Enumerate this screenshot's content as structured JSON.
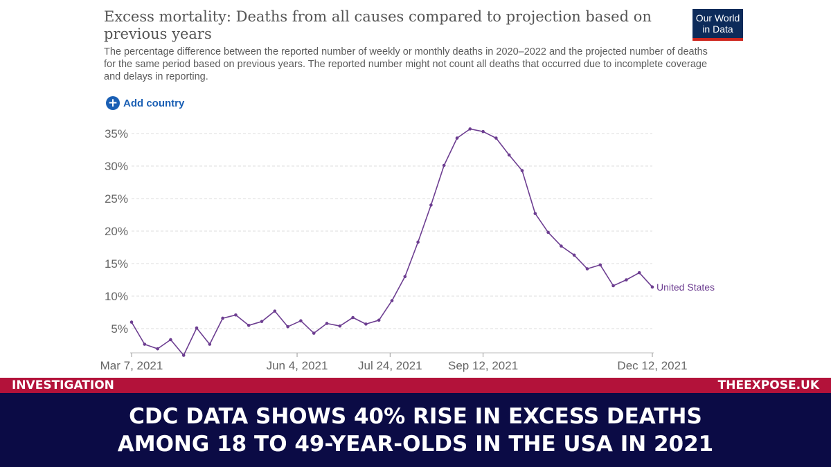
{
  "header": {
    "title": "Excess mortality: Deaths from all causes compared to projection based on previous years",
    "subtitle": "The percentage difference between the reported number of weekly or monthly deaths in 2020–2022 and the projected number of deaths for the same period based on previous years. The reported number might not count all deaths that occurred due to incomplete coverage and delays in reporting."
  },
  "logo": {
    "line1": "Our World",
    "line2": "in Data"
  },
  "controls": {
    "add_country_icon": "plus-circle-icon",
    "add_country_label": "Add country"
  },
  "chart_data": {
    "type": "line",
    "title": "Excess mortality: Deaths from all causes compared to projection based on previous years",
    "xlabel": "",
    "ylabel": "",
    "ylim": [
      0,
      37
    ],
    "yticks": [
      5,
      10,
      15,
      20,
      25,
      30,
      35
    ],
    "ytick_labels": [
      "5%",
      "10%",
      "15%",
      "20%",
      "25%",
      "30%",
      "35%"
    ],
    "xtick_labels": [
      {
        "label": "Mar 7, 2021",
        "date": "2021-03-07"
      },
      {
        "label": "Jun 4, 2021",
        "date": "2021-06-04"
      },
      {
        "label": "Jul 24, 2021",
        "date": "2021-07-24"
      },
      {
        "label": "Sep 12, 2021",
        "date": "2021-09-12"
      },
      {
        "label": "Dec 12, 2021",
        "date": "2021-12-12"
      }
    ],
    "grid": "horizontal dashed",
    "series": [
      {
        "name": "United States",
        "color": "#6d3e91",
        "x": [
          "2021-03-07",
          "2021-03-14",
          "2021-03-21",
          "2021-03-28",
          "2021-04-04",
          "2021-04-11",
          "2021-04-18",
          "2021-04-25",
          "2021-05-02",
          "2021-05-09",
          "2021-05-16",
          "2021-05-23",
          "2021-05-30",
          "2021-06-06",
          "2021-06-13",
          "2021-06-20",
          "2021-06-27",
          "2021-07-04",
          "2021-07-11",
          "2021-07-18",
          "2021-07-25",
          "2021-08-01",
          "2021-08-08",
          "2021-08-15",
          "2021-08-22",
          "2021-08-29",
          "2021-09-05",
          "2021-09-12",
          "2021-09-19",
          "2021-09-26",
          "2021-10-03",
          "2021-10-10",
          "2021-10-17",
          "2021-10-24",
          "2021-10-31",
          "2021-11-07",
          "2021-11-14",
          "2021-11-21",
          "2021-11-28",
          "2021-12-05",
          "2021-12-12"
        ],
        "values": [
          6.0,
          2.6,
          1.9,
          3.3,
          0.9,
          5.1,
          2.6,
          6.6,
          7.1,
          5.5,
          6.1,
          7.7,
          5.3,
          6.2,
          4.3,
          5.8,
          5.4,
          6.7,
          5.7,
          6.3,
          9.3,
          13.0,
          18.3,
          24.0,
          30.1,
          34.3,
          35.7,
          35.3,
          34.3,
          31.7,
          29.3,
          22.7,
          19.8,
          17.7,
          16.3,
          14.2,
          14.8,
          11.6,
          12.5,
          13.6,
          11.4
        ]
      }
    ]
  },
  "ribbon": {
    "left": "INVESTIGATION",
    "right": "THEEXPOSE.UK"
  },
  "headline": {
    "line1": "CDC DATA SHOWS 40% RISE IN EXCESS DEATHS",
    "line2": "AMONG 18 TO 49-YEAR-OLDS IN THE USA IN 2021"
  }
}
